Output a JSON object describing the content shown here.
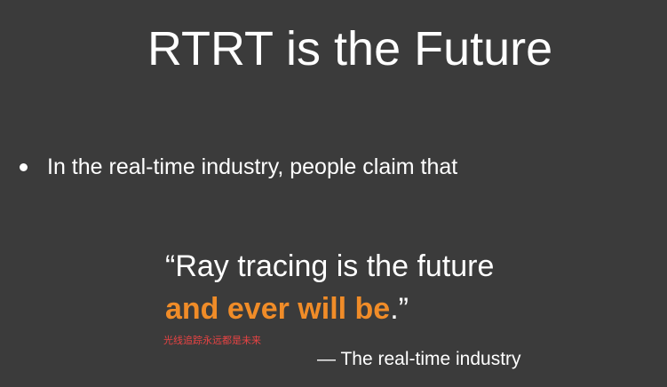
{
  "slide": {
    "title": "RTRT is the Future",
    "bullet": "In the real-time industry, people claim that",
    "quote": {
      "line1": "“Ray tracing is the future",
      "line2_highlight": "and ever will be",
      "line2_end": ".”",
      "highlight_color": "#f08c28"
    },
    "annotation": "光线追踪永远都是未来",
    "attribution": "— The real-time industry"
  },
  "colors": {
    "background": "#3b3b3b",
    "text": "#ffffff",
    "annotation": "#e84343"
  }
}
